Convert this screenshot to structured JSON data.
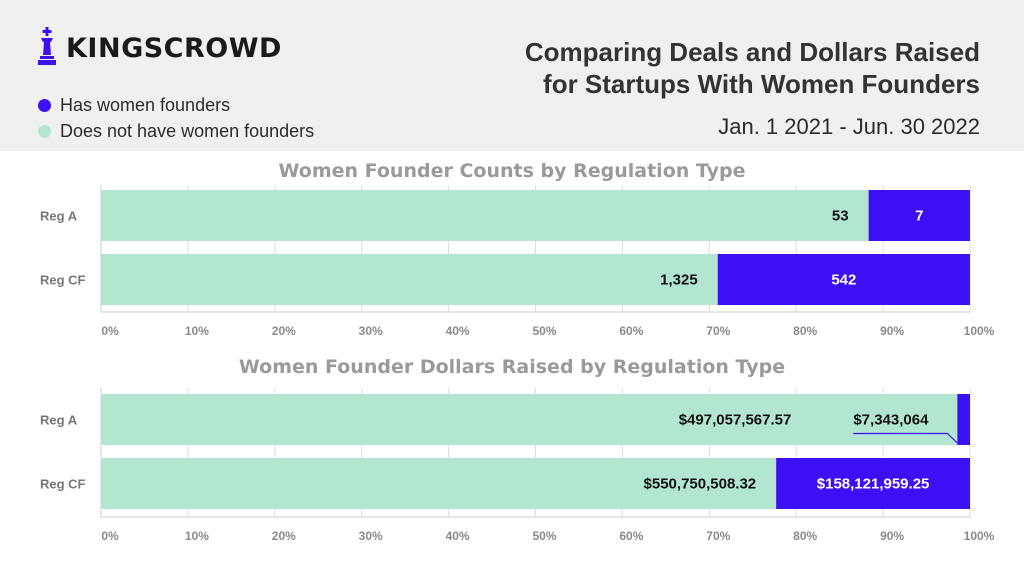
{
  "brand": {
    "name": "KINGSCROWD"
  },
  "header": {
    "title": "Comparing Deals and Dollars Raised for Startups With Women Founders",
    "date_range": "Jan. 1 2021 - Jun. 30 2022"
  },
  "legend": [
    {
      "label": "Has women founders",
      "color": "#3c0ff5"
    },
    {
      "label": "Does not have women founders",
      "color": "#b3e6d0"
    }
  ],
  "colors": {
    "women": "#3c0ff5",
    "no_women": "#b3e6d0",
    "grid": "#dddddd"
  },
  "chart_data": [
    {
      "type": "bar",
      "orientation": "horizontal",
      "stacked": "percent",
      "title": "Women Founder Counts by Regulation Type",
      "categories": [
        "Reg A",
        "Reg CF"
      ],
      "series": [
        {
          "name": "Does not have women founders",
          "values": [
            53,
            1325
          ],
          "labels": [
            "53",
            "1,325"
          ]
        },
        {
          "name": "Has women founders",
          "values": [
            7,
            542
          ],
          "labels": [
            "7",
            "542"
          ]
        }
      ],
      "xlim": [
        0,
        100
      ],
      "xticks": [
        "0%",
        "10%",
        "20%",
        "30%",
        "40%",
        "50%",
        "60%",
        "70%",
        "80%",
        "90%",
        "100%"
      ],
      "grid": true
    },
    {
      "type": "bar",
      "orientation": "horizontal",
      "stacked": "percent",
      "title": "Women Founder Dollars Raised by Regulation Type",
      "categories": [
        "Reg A",
        "Reg CF"
      ],
      "series": [
        {
          "name": "Does not have women founders",
          "values": [
            497057567.57,
            550750508.32
          ],
          "labels": [
            "$497,057,567.57",
            "$550,750,508.32"
          ]
        },
        {
          "name": "Has women founders",
          "values": [
            7343064,
            158121959.25
          ],
          "labels": [
            "$7,343,064",
            "$158,121,959.25"
          ]
        }
      ],
      "xlim": [
        0,
        100
      ],
      "xticks": [
        "0%",
        "10%",
        "20%",
        "30%",
        "40%",
        "50%",
        "60%",
        "70%",
        "80%",
        "90%",
        "100%"
      ],
      "grid": true
    }
  ]
}
